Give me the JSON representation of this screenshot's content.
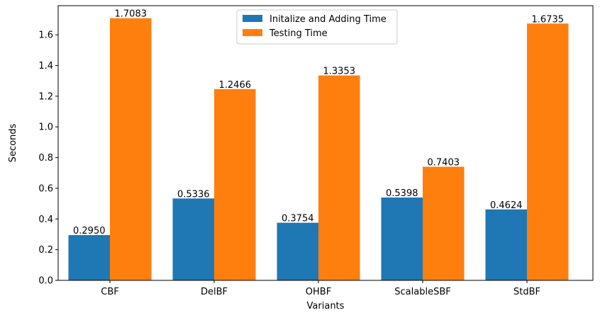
{
  "chart_data": {
    "type": "bar",
    "title": "",
    "xlabel": "Variants",
    "ylabel": "Seconds",
    "categories": [
      "CBF",
      "DelBF",
      "OHBF",
      "ScalableSBF",
      "StdBF"
    ],
    "series": [
      {
        "name": "Initalize and Adding Time",
        "color": "#1f77b4",
        "values": [
          0.295,
          0.5336,
          0.3754,
          0.5398,
          0.4624
        ],
        "labels": [
          "0.2950",
          "0.5336",
          "0.3754",
          "0.5398",
          "0.4624"
        ]
      },
      {
        "name": "Testing Time",
        "color": "#ff7f0e",
        "values": [
          1.7083,
          1.2466,
          1.3353,
          0.7403,
          1.6735
        ],
        "labels": [
          "1.7083",
          "1.2466",
          "1.3353",
          "0.7403",
          "1.6735"
        ]
      }
    ],
    "ylim": [
      0,
      1.79
    ],
    "yticks": [
      "0.0",
      "0.2",
      "0.4",
      "0.6",
      "0.8",
      "1.0",
      "1.2",
      "1.4",
      "1.6"
    ],
    "grid": false,
    "legend_position": "top-center"
  }
}
